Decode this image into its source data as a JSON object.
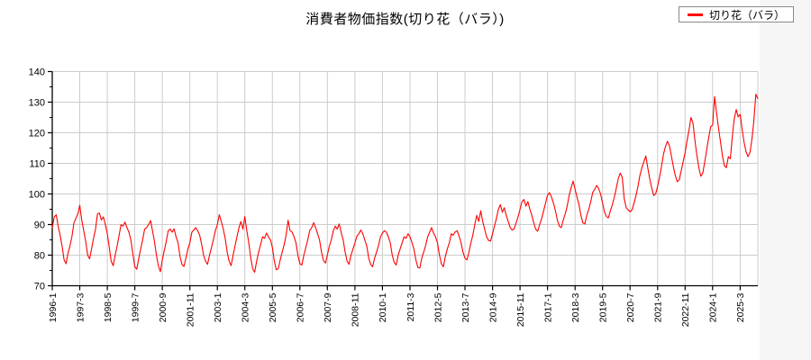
{
  "title": "消費者物価指数(切り花（バラ）)",
  "legend": {
    "label": "切り花（バラ）"
  },
  "chart_data": {
    "type": "line",
    "title": "消費者物価指数(切り花（バラ）)",
    "xlabel": "",
    "ylabel": "",
    "ylim": [
      70,
      140
    ],
    "y_ticks": [
      70,
      80,
      90,
      100,
      110,
      120,
      130,
      140
    ],
    "y_minor_tick_step": 5,
    "grid": true,
    "legend_position": "top-right",
    "x_start": "1996-1",
    "x_end": "2025-12",
    "x_tick_interval_months": 14,
    "x_tick_labels": [
      "1996-1",
      "1997-3",
      "1998-5",
      "1999-7",
      "2000-9",
      "2001-11",
      "2003-1",
      "2004-3",
      "2005-5",
      "2006-7",
      "2007-9",
      "2008-11",
      "2010-1",
      "2011-3",
      "2012-5",
      "2013-7",
      "2014-9",
      "2015-11",
      "2017-1",
      "2018-3",
      "2019-5",
      "2020-7",
      "2021-9",
      "2022-11",
      "2024-1",
      "2025-3"
    ],
    "colors": {
      "line": "#ff0000",
      "grid": "#cccccc",
      "axis": "#000000",
      "page_bg": "#f5f5f5",
      "paper_bg": "#ffffff"
    },
    "series": [
      {
        "name": "切り花（バラ）",
        "color": "#ff0000",
        "frequency": "monthly",
        "values": [
          89.0,
          92.5,
          93.2,
          89.5,
          86.5,
          83.0,
          78.5,
          77.2,
          80.5,
          83.0,
          86.0,
          90.5,
          92.0,
          93.5,
          96.3,
          91.5,
          88.0,
          84.5,
          80.0,
          78.8,
          82.0,
          85.5,
          88.5,
          93.5,
          93.8,
          91.5,
          92.5,
          90.0,
          87.0,
          82.5,
          78.0,
          76.6,
          80.0,
          83.0,
          86.5,
          90.0,
          89.5,
          90.8,
          89.0,
          87.5,
          85.0,
          80.5,
          76.2,
          75.4,
          79.0,
          82.0,
          85.0,
          88.5,
          89.0,
          90.0,
          91.3,
          88.0,
          84.5,
          80.0,
          76.5,
          74.6,
          78.5,
          81.5,
          84.5,
          88.0,
          88.5,
          87.5,
          88.6,
          86.0,
          84.0,
          79.5,
          77.0,
          76.3,
          79.0,
          82.0,
          84.0,
          87.5,
          88.2,
          89.0,
          88.0,
          86.5,
          83.5,
          80.0,
          78.0,
          77.0,
          80.0,
          82.5,
          85.0,
          88.0,
          90.0,
          93.2,
          91.0,
          88.5,
          85.5,
          81.0,
          78.0,
          76.6,
          80.0,
          83.0,
          86.0,
          89.0,
          91.0,
          88.5,
          92.6,
          88.0,
          84.0,
          79.0,
          75.5,
          74.4,
          78.0,
          81.0,
          83.5,
          86.0,
          85.5,
          87.2,
          86.0,
          85.0,
          82.5,
          78.0,
          75.2,
          75.6,
          78.5,
          81.0,
          83.5,
          86.5,
          91.4,
          88.0,
          87.6,
          86.0,
          84.0,
          80.0,
          77.2,
          76.8,
          80.0,
          82.5,
          85.0,
          88.0,
          89.0,
          90.6,
          89.0,
          87.0,
          85.0,
          81.0,
          78.2,
          77.4,
          80.0,
          83.0,
          85.0,
          88.0,
          89.5,
          88.5,
          90.2,
          87.5,
          85.0,
          81.0,
          78.0,
          77.0,
          80.0,
          82.0,
          84.0,
          86.2,
          87.0,
          88.2,
          87.0,
          85.0,
          83.0,
          79.0,
          77.0,
          76.2,
          79.0,
          81.0,
          83.2,
          86.0,
          87.2,
          88.0,
          87.5,
          86.0,
          84.0,
          80.0,
          77.6,
          76.8,
          80.0,
          82.0,
          84.0,
          86.0,
          85.5,
          87.0,
          86.0,
          84.2,
          82.0,
          78.5,
          76.0,
          75.8,
          79.0,
          81.0,
          83.2,
          86.0,
          87.5,
          89.0,
          87.2,
          86.0,
          84.0,
          80.0,
          77.2,
          76.2,
          79.5,
          82.0,
          84.0,
          87.0,
          86.5,
          87.6,
          88.0,
          86.2,
          84.0,
          81.0,
          79.0,
          78.4,
          81.0,
          84.0,
          86.5,
          90.0,
          93.0,
          91.0,
          94.5,
          91.0,
          88.5,
          86.0,
          84.8,
          84.6,
          87.0,
          89.5,
          92.0,
          95.0,
          96.5,
          94.0,
          95.5,
          93.0,
          91.0,
          89.0,
          88.2,
          88.6,
          90.5,
          92.5,
          95.0,
          97.5,
          98.2,
          96.0,
          97.5,
          95.0,
          93.0,
          90.5,
          88.5,
          87.8,
          90.0,
          92.0,
          94.5,
          97.0,
          99.6,
          100.4,
          99.0,
          97.0,
          94.5,
          91.5,
          89.5,
          89.0,
          91.5,
          93.5,
          96.0,
          99.5,
          102.0,
          104.2,
          101.5,
          99.0,
          96.5,
          93.0,
          90.5,
          90.2,
          93.0,
          95.0,
          97.5,
          100.5,
          101.5,
          102.8,
          101.8,
          100.0,
          97.0,
          94.0,
          92.6,
          92.2,
          94.5,
          96.5,
          99.0,
          102.0,
          105.0,
          106.8,
          105.5,
          98.5,
          95.5,
          94.8,
          94.2,
          94.8,
          97.0,
          99.5,
          102.5,
          106.0,
          108.5,
          110.5,
          112.4,
          108.5,
          105.0,
          102.0,
          99.5,
          100.0,
          102.5,
          105.5,
          109.0,
          113.0,
          115.5,
          117.2,
          115.8,
          112.5,
          109.0,
          106.0,
          104.0,
          104.6,
          107.5,
          110.5,
          113.5,
          117.5,
          121.0,
          125.0,
          123.2,
          117.5,
          112.5,
          108.5,
          105.8,
          106.8,
          110.5,
          114.5,
          118.5,
          122.0,
          122.5,
          131.8,
          126.5,
          121.5,
          117.0,
          112.5,
          109.2,
          108.6,
          112.2,
          111.5,
          118.5,
          124.5,
          127.6,
          125.2,
          126.0,
          121.0,
          117.0,
          113.8,
          112.2,
          113.6,
          118.0,
          124.0,
          132.6,
          131.2
        ]
      }
    ]
  }
}
